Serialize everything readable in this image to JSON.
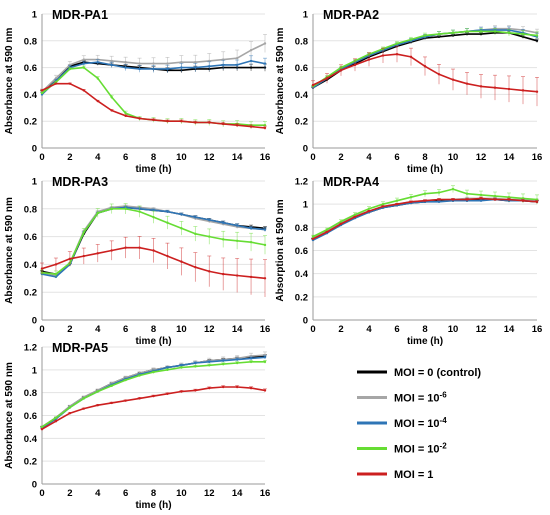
{
  "legend": {
    "position": "bottom-right",
    "entries": [
      {
        "label": "MOI = 0 (control)",
        "color": "#000000"
      },
      {
        "label": "MOI = 10",
        "sup": "-6",
        "color": "#a6a6a6"
      },
      {
        "label": "MOI = 10",
        "sup": "-4",
        "color": "#2e75b6"
      },
      {
        "label": "MOI = 10",
        "sup": "-2",
        "color": "#66dd33"
      },
      {
        "label": "MOI = 1",
        "color": "#cc1f1f"
      }
    ]
  },
  "chart_data": [
    {
      "type": "line",
      "title": "MDR-PA1",
      "xlabel": "time (h)",
      "ylabel": "Absorbance at 590 nm",
      "xlim": [
        0,
        16
      ],
      "ylim": [
        0,
        1
      ],
      "xticks": [
        "0",
        "2",
        "4",
        "6",
        "8",
        "10",
        "12",
        "14",
        "16"
      ],
      "yticks": [
        "0",
        "0.2",
        "0.4",
        "0.6",
        "0.8",
        "1"
      ],
      "x": [
        0,
        1,
        2,
        3,
        4,
        5,
        6,
        7,
        8,
        9,
        10,
        11,
        12,
        13,
        14,
        15,
        16
      ],
      "series": [
        {
          "color": "#000000",
          "values": [
            0.42,
            0.5,
            0.61,
            0.64,
            0.63,
            0.62,
            0.61,
            0.6,
            0.59,
            0.58,
            0.58,
            0.59,
            0.59,
            0.6,
            0.6,
            0.6,
            0.6
          ]
        },
        {
          "color": "#a6a6a6",
          "values": [
            0.42,
            0.52,
            0.62,
            0.66,
            0.66,
            0.65,
            0.64,
            0.63,
            0.63,
            0.63,
            0.64,
            0.64,
            0.65,
            0.66,
            0.67,
            0.73,
            0.78
          ]
        },
        {
          "color": "#2e75b6",
          "values": [
            0.4,
            0.5,
            0.6,
            0.63,
            0.64,
            0.62,
            0.6,
            0.59,
            0.59,
            0.59,
            0.6,
            0.6,
            0.61,
            0.62,
            0.62,
            0.65,
            0.63
          ]
        },
        {
          "color": "#66dd33",
          "values": [
            0.41,
            0.49,
            0.59,
            0.6,
            0.52,
            0.38,
            0.26,
            0.22,
            0.21,
            0.2,
            0.2,
            0.19,
            0.19,
            0.18,
            0.18,
            0.17,
            0.17
          ]
        },
        {
          "color": "#cc1f1f",
          "values": [
            0.43,
            0.48,
            0.48,
            0.43,
            0.35,
            0.28,
            0.24,
            0.22,
            0.21,
            0.2,
            0.2,
            0.19,
            0.19,
            0.18,
            0.17,
            0.16,
            0.15
          ]
        }
      ]
    },
    {
      "type": "line",
      "title": "MDR-PA2",
      "xlabel": "time (h)",
      "ylabel": "Absorbance at 590 nm",
      "xlim": [
        0,
        16
      ],
      "ylim": [
        0,
        1
      ],
      "xticks": [
        "0",
        "2",
        "4",
        "6",
        "8",
        "10",
        "12",
        "14",
        "16"
      ],
      "yticks": [
        "0",
        "0.2",
        "0.4",
        "0.6",
        "0.8",
        "1"
      ],
      "x": [
        0,
        1,
        2,
        3,
        4,
        5,
        6,
        7,
        8,
        9,
        10,
        11,
        12,
        13,
        14,
        15,
        16
      ],
      "series": [
        {
          "color": "#000000",
          "values": [
            0.45,
            0.51,
            0.58,
            0.63,
            0.68,
            0.72,
            0.76,
            0.79,
            0.82,
            0.83,
            0.84,
            0.85,
            0.85,
            0.86,
            0.86,
            0.83,
            0.8
          ]
        },
        {
          "color": "#a6a6a6",
          "values": [
            0.46,
            0.52,
            0.59,
            0.64,
            0.69,
            0.73,
            0.77,
            0.8,
            0.83,
            0.85,
            0.86,
            0.87,
            0.88,
            0.89,
            0.89,
            0.88,
            0.86
          ]
        },
        {
          "color": "#2e75b6",
          "values": [
            0.45,
            0.52,
            0.59,
            0.64,
            0.69,
            0.73,
            0.77,
            0.8,
            0.83,
            0.85,
            0.86,
            0.87,
            0.88,
            0.88,
            0.88,
            0.86,
            0.83
          ]
        },
        {
          "color": "#66dd33",
          "values": [
            0.46,
            0.53,
            0.6,
            0.65,
            0.7,
            0.74,
            0.78,
            0.81,
            0.84,
            0.85,
            0.86,
            0.87,
            0.87,
            0.87,
            0.86,
            0.85,
            0.84
          ]
        },
        {
          "color": "#cc1f1f",
          "values": [
            0.47,
            0.52,
            0.58,
            0.62,
            0.66,
            0.69,
            0.7,
            0.68,
            0.61,
            0.55,
            0.51,
            0.48,
            0.46,
            0.45,
            0.44,
            0.43,
            0.42
          ]
        }
      ]
    },
    {
      "type": "line",
      "title": "MDR-PA3",
      "xlabel": "time (h)",
      "ylabel": "Absorbance at 590 nm",
      "xlim": [
        0,
        16
      ],
      "ylim": [
        0,
        1
      ],
      "xticks": [
        "0",
        "2",
        "4",
        "6",
        "8",
        "10",
        "12",
        "14",
        "16"
      ],
      "yticks": [
        "0",
        "0.2",
        "0.4",
        "0.6",
        "0.8",
        "1"
      ],
      "x": [
        0,
        1,
        2,
        3,
        4,
        5,
        6,
        7,
        8,
        9,
        10,
        11,
        12,
        13,
        14,
        15,
        16
      ],
      "series": [
        {
          "color": "#000000",
          "values": [
            0.35,
            0.33,
            0.4,
            0.62,
            0.77,
            0.8,
            0.81,
            0.8,
            0.79,
            0.78,
            0.76,
            0.74,
            0.72,
            0.7,
            0.68,
            0.67,
            0.66
          ]
        },
        {
          "color": "#a6a6a6",
          "values": [
            0.34,
            0.32,
            0.41,
            0.64,
            0.78,
            0.81,
            0.82,
            0.81,
            0.8,
            0.78,
            0.76,
            0.73,
            0.71,
            0.69,
            0.67,
            0.66,
            0.65
          ]
        },
        {
          "color": "#2e75b6",
          "values": [
            0.33,
            0.31,
            0.4,
            0.63,
            0.77,
            0.8,
            0.81,
            0.8,
            0.79,
            0.78,
            0.76,
            0.74,
            0.72,
            0.7,
            0.68,
            0.66,
            0.65
          ]
        },
        {
          "color": "#66dd33",
          "values": [
            0.34,
            0.33,
            0.41,
            0.63,
            0.77,
            0.8,
            0.8,
            0.78,
            0.74,
            0.7,
            0.66,
            0.62,
            0.6,
            0.58,
            0.57,
            0.56,
            0.54
          ]
        },
        {
          "color": "#cc1f1f",
          "values": [
            0.37,
            0.4,
            0.44,
            0.46,
            0.48,
            0.5,
            0.52,
            0.52,
            0.5,
            0.46,
            0.42,
            0.38,
            0.35,
            0.33,
            0.32,
            0.31,
            0.3
          ]
        }
      ]
    },
    {
      "type": "line",
      "title": "MDR-PA4",
      "xlabel": "time (h)",
      "ylabel": "Absorption at 590 nm",
      "xlim": [
        0,
        16
      ],
      "ylim": [
        0,
        1.2
      ],
      "xticks": [
        "0",
        "2",
        "4",
        "6",
        "8",
        "10",
        "12",
        "14",
        "16"
      ],
      "yticks": [
        "0",
        "0.2",
        "0.4",
        "0.6",
        "0.8",
        "1",
        "1.2"
      ],
      "x": [
        0,
        1,
        2,
        3,
        4,
        5,
        6,
        7,
        8,
        9,
        10,
        11,
        12,
        13,
        14,
        15,
        16
      ],
      "series": [
        {
          "color": "#000000",
          "values": [
            0.7,
            0.76,
            0.83,
            0.89,
            0.93,
            0.97,
            0.99,
            1.01,
            1.02,
            1.03,
            1.03,
            1.03,
            1.04,
            1.04,
            1.03,
            1.03,
            1.02
          ]
        },
        {
          "color": "#a6a6a6",
          "values": [
            0.71,
            0.77,
            0.84,
            0.9,
            0.94,
            0.98,
            1.0,
            1.02,
            1.03,
            1.04,
            1.04,
            1.05,
            1.05,
            1.05,
            1.04,
            1.04,
            1.03
          ]
        },
        {
          "color": "#2e75b6",
          "values": [
            0.69,
            0.75,
            0.82,
            0.88,
            0.93,
            0.97,
            0.99,
            1.01,
            1.02,
            1.02,
            1.03,
            1.03,
            1.03,
            1.04,
            1.03,
            1.03,
            1.02
          ]
        },
        {
          "color": "#66dd33",
          "values": [
            0.72,
            0.78,
            0.85,
            0.91,
            0.96,
            1.0,
            1.03,
            1.06,
            1.09,
            1.1,
            1.13,
            1.09,
            1.08,
            1.07,
            1.06,
            1.05,
            1.04
          ]
        },
        {
          "color": "#cc1f1f",
          "values": [
            0.7,
            0.76,
            0.83,
            0.89,
            0.94,
            0.98,
            1.0,
            1.02,
            1.03,
            1.04,
            1.04,
            1.04,
            1.05,
            1.04,
            1.04,
            1.03,
            1.02
          ]
        }
      ]
    },
    {
      "type": "line",
      "title": "MDR-PA5",
      "xlabel": "time (h)",
      "ylabel": "Absorbance at 590 nm",
      "xlim": [
        0,
        16
      ],
      "ylim": [
        0,
        1.2
      ],
      "xticks": [
        "0",
        "2",
        "4",
        "6",
        "8",
        "10",
        "12",
        "14",
        "16"
      ],
      "yticks": [
        "0",
        "0.2",
        "0.4",
        "0.6",
        "0.8",
        "1",
        "1.2"
      ],
      "x": [
        0,
        1,
        2,
        3,
        4,
        5,
        6,
        7,
        8,
        9,
        10,
        11,
        12,
        13,
        14,
        15,
        16
      ],
      "series": [
        {
          "color": "#000000",
          "values": [
            0.5,
            0.58,
            0.68,
            0.76,
            0.82,
            0.88,
            0.93,
            0.97,
            1.0,
            1.02,
            1.04,
            1.06,
            1.08,
            1.09,
            1.1,
            1.11,
            1.12
          ]
        },
        {
          "color": "#a6a6a6",
          "values": [
            0.5,
            0.58,
            0.68,
            0.76,
            0.82,
            0.88,
            0.93,
            0.97,
            1.0,
            1.02,
            1.04,
            1.06,
            1.08,
            1.09,
            1.1,
            1.12,
            1.13
          ]
        },
        {
          "color": "#2e75b6",
          "values": [
            0.49,
            0.57,
            0.67,
            0.75,
            0.81,
            0.87,
            0.92,
            0.96,
            0.99,
            1.02,
            1.04,
            1.06,
            1.07,
            1.08,
            1.09,
            1.1,
            1.11
          ]
        },
        {
          "color": "#66dd33",
          "values": [
            0.5,
            0.58,
            0.67,
            0.75,
            0.81,
            0.86,
            0.91,
            0.95,
            0.98,
            1.0,
            1.02,
            1.03,
            1.04,
            1.05,
            1.06,
            1.07,
            1.07
          ]
        },
        {
          "color": "#cc1f1f",
          "values": [
            0.48,
            0.55,
            0.62,
            0.66,
            0.69,
            0.71,
            0.73,
            0.75,
            0.77,
            0.79,
            0.81,
            0.82,
            0.84,
            0.85,
            0.85,
            0.84,
            0.82
          ]
        }
      ]
    }
  ]
}
